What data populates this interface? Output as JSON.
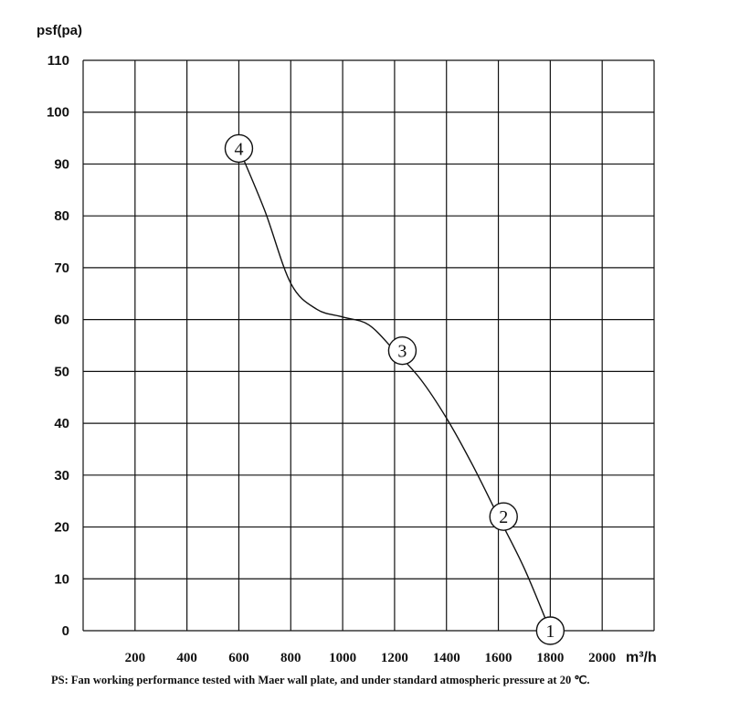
{
  "chart_data": {
    "type": "line",
    "ylabel": "psf(pa)",
    "xlabel": "m³/h",
    "xlim": [
      0,
      2200
    ],
    "ylim": [
      0,
      110
    ],
    "x_ticks": [
      "200",
      "400",
      "600",
      "800",
      "1000",
      "1200",
      "1400",
      "1600",
      "1800",
      "2000"
    ],
    "y_ticks": [
      "0",
      "10",
      "20",
      "30",
      "40",
      "50",
      "60",
      "70",
      "80",
      "90",
      "100",
      "110"
    ],
    "grid": true,
    "series": [
      {
        "x": [
          600,
          700,
          800,
          900,
          1000,
          1100,
          1200,
          1300,
          1400,
          1500,
          1600,
          1700,
          1800
        ],
        "y": [
          93,
          81,
          67,
          62,
          60.5,
          59,
          54,
          48.5,
          41,
          32,
          22,
          12,
          0
        ]
      }
    ],
    "markers": [
      {
        "label": "1",
        "x": 1800,
        "y": 0
      },
      {
        "label": "2",
        "x": 1620,
        "y": 22
      },
      {
        "label": "3",
        "x": 1230,
        "y": 54
      },
      {
        "label": "4",
        "x": 600,
        "y": 93
      }
    ]
  },
  "note": "PS: Fan working performance tested with Maer wall plate, and under standard atmospheric pressure at 20 ℃."
}
